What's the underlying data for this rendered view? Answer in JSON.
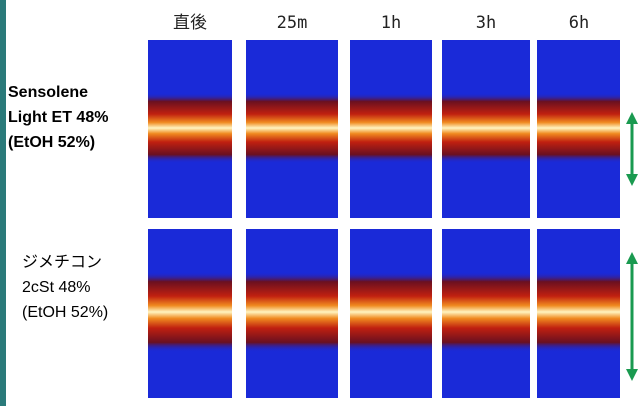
{
  "columns": [
    "直後",
    "25m",
    "1h",
    "3h",
    "6h"
  ],
  "rows": [
    {
      "label_lines": [
        "Sensolene",
        "Light ET 48%",
        "(EtOH 52%)"
      ]
    },
    {
      "label_lines": [
        "ジメチコン",
        "2cSt 48%",
        "(EtOH 52%)"
      ]
    }
  ]
}
